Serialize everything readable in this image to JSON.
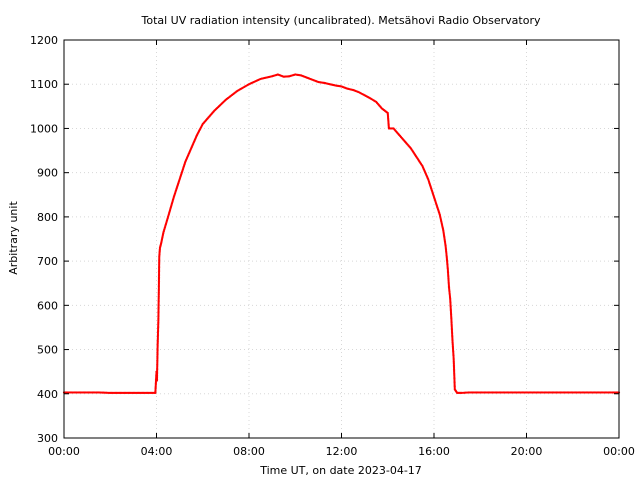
{
  "chart_data": {
    "type": "scatter",
    "title": "Total UV radiation intensity (uncalibrated). Metsähovi Radio Observatory",
    "xlabel": "Time UT, on date 2023-04-17",
    "ylabel": "Arbitrary unit",
    "x_unit": "hours UT",
    "xlim": [
      0,
      24
    ],
    "ylim": [
      300,
      1200
    ],
    "x_ticks": [
      0,
      4,
      8,
      12,
      16,
      20,
      24
    ],
    "x_tick_labels": [
      "00:00",
      "04:00",
      "08:00",
      "12:00",
      "16:00",
      "20:00",
      "00:00"
    ],
    "y_ticks": [
      300,
      400,
      500,
      600,
      700,
      800,
      900,
      1000,
      1100,
      1200
    ],
    "y_tick_labels": [
      "300",
      "400",
      "500",
      "600",
      "700",
      "800",
      "900",
      "1000",
      "1100",
      "1200"
    ],
    "grid": true,
    "legend": "none",
    "marker_color": "#ff0000",
    "series": [
      {
        "x": [
          0.0,
          0.5,
          1.0,
          1.5,
          2.0,
          2.5,
          3.0,
          3.5,
          3.9,
          3.95,
          4.0,
          4.02,
          4.05,
          4.08,
          4.1,
          4.12,
          4.15,
          4.2,
          4.3,
          4.5,
          4.75,
          5.0,
          5.25,
          5.5,
          5.75,
          6.0,
          6.25,
          6.5,
          7.0,
          7.5,
          8.0,
          8.5,
          9.0,
          9.25,
          9.5,
          9.75,
          10.0,
          10.25,
          10.5,
          10.75,
          11.0,
          11.25,
          11.5,
          11.75,
          12.0,
          12.25,
          12.5,
          12.75,
          13.0,
          13.25,
          13.5,
          13.75,
          14.0,
          14.05,
          14.25,
          14.5,
          14.75,
          15.0,
          15.25,
          15.5,
          15.75,
          16.0,
          16.25,
          16.4,
          16.5,
          16.55,
          16.6,
          16.65,
          16.7,
          16.75,
          16.8,
          16.85,
          16.9,
          17.0,
          17.2,
          17.5,
          18.0,
          19.0,
          20.0,
          21.0,
          22.0,
          23.0,
          24.0
        ],
        "y": [
          403,
          403,
          403,
          403,
          402,
          402,
          402,
          402,
          402,
          402,
          450,
          430,
          510,
          565,
          630,
          710,
          730,
          740,
          765,
          800,
          845,
          885,
          925,
          955,
          985,
          1010,
          1025,
          1040,
          1065,
          1085,
          1100,
          1112,
          1118,
          1122,
          1117,
          1118,
          1122,
          1120,
          1115,
          1110,
          1105,
          1103,
          1100,
          1097,
          1095,
          1090,
          1087,
          1082,
          1075,
          1068,
          1060,
          1045,
          1035,
          1000,
          1000,
          985,
          970,
          955,
          935,
          915,
          885,
          845,
          805,
          770,
          735,
          710,
          680,
          640,
          615,
          570,
          520,
          480,
          410,
          402,
          402,
          403,
          403,
          403,
          403,
          403,
          403,
          403,
          403
        ]
      }
    ]
  }
}
